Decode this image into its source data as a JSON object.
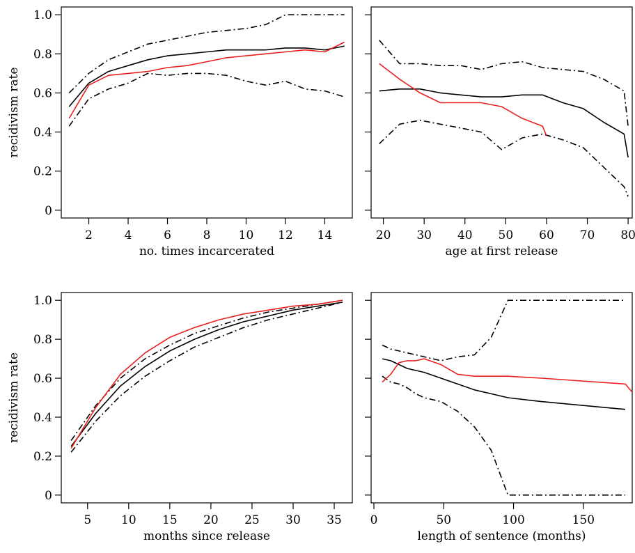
{
  "colors": {
    "black": "#000000",
    "red": "#e8201e"
  },
  "chart_data": [
    {
      "type": "line",
      "xlabel": "no. times incarcerated",
      "ylabel": "recidivism rate",
      "xlim": [
        0.6,
        15.4
      ],
      "ylim": [
        -0.04,
        1.04
      ],
      "xticks": [
        2,
        4,
        6,
        8,
        10,
        12,
        14
      ],
      "yticks": [
        0,
        0.2,
        0.4,
        0.6,
        0.8,
        1.0
      ],
      "xtick_labels": [
        "2",
        "4",
        "6",
        "8",
        "10",
        "12",
        "14"
      ],
      "ytick_labels": [
        "0",
        "0.2",
        "0.4",
        "0.6",
        "0.8",
        "1.0"
      ],
      "show_xtick_labels": true,
      "show_ytick_labels": true,
      "series": [
        {
          "style": "solid",
          "color": "#000000",
          "x": [
            1,
            2,
            3,
            4,
            5,
            6,
            7,
            8,
            9,
            10,
            11,
            12,
            13,
            14,
            15
          ],
          "y": [
            0.53,
            0.65,
            0.71,
            0.74,
            0.77,
            0.79,
            0.8,
            0.81,
            0.82,
            0.82,
            0.82,
            0.83,
            0.83,
            0.82,
            0.84
          ]
        },
        {
          "style": "dashdot",
          "color": "#000000",
          "x": [
            1,
            2,
            3,
            4,
            5,
            6,
            7,
            8,
            9,
            10,
            11,
            12,
            13,
            14,
            15
          ],
          "y": [
            0.6,
            0.7,
            0.77,
            0.81,
            0.85,
            0.87,
            0.89,
            0.91,
            0.92,
            0.93,
            0.95,
            1.0,
            1.0,
            1.0,
            1.0
          ]
        },
        {
          "style": "dashdot",
          "color": "#000000",
          "x": [
            1,
            2,
            3,
            4,
            5,
            6,
            7,
            8,
            9,
            10,
            11,
            12,
            13,
            14,
            15
          ],
          "y": [
            0.43,
            0.57,
            0.62,
            0.65,
            0.7,
            0.69,
            0.7,
            0.7,
            0.69,
            0.66,
            0.64,
            0.66,
            0.62,
            0.61,
            0.58
          ]
        },
        {
          "style": "solid",
          "color": "#e8201e",
          "x": [
            1,
            2,
            3,
            4,
            5,
            6,
            7,
            8,
            9,
            10,
            11,
            12,
            13,
            14,
            15
          ],
          "y": [
            0.47,
            0.64,
            0.69,
            0.7,
            0.71,
            0.73,
            0.74,
            0.76,
            0.78,
            0.79,
            0.8,
            0.81,
            0.82,
            0.81,
            0.86
          ]
        }
      ]
    },
    {
      "type": "line",
      "xlabel": "age at first release",
      "ylabel": "",
      "xlim": [
        17,
        81
      ],
      "ylim": [
        -0.04,
        1.04
      ],
      "xticks": [
        20,
        30,
        40,
        50,
        60,
        70,
        80
      ],
      "yticks": [
        0,
        0.2,
        0.4,
        0.6,
        0.8,
        1.0
      ],
      "xtick_labels": [
        "20",
        "30",
        "40",
        "50",
        "60",
        "70",
        "80"
      ],
      "ytick_labels": [],
      "show_xtick_labels": true,
      "show_ytick_labels": false,
      "series": [
        {
          "style": "solid",
          "color": "#000000",
          "x": [
            19,
            24,
            29,
            34,
            39,
            44,
            49,
            54,
            59,
            64,
            69,
            74,
            79,
            80
          ],
          "y": [
            0.61,
            0.62,
            0.62,
            0.6,
            0.59,
            0.58,
            0.58,
            0.59,
            0.59,
            0.55,
            0.52,
            0.45,
            0.39,
            0.27
          ]
        },
        {
          "style": "dashdot",
          "color": "#000000",
          "x": [
            19,
            24,
            29,
            34,
            39,
            44,
            49,
            54,
            59,
            64,
            69,
            74,
            79,
            80
          ],
          "y": [
            0.87,
            0.75,
            0.75,
            0.74,
            0.74,
            0.72,
            0.75,
            0.76,
            0.73,
            0.72,
            0.71,
            0.67,
            0.61,
            0.43
          ]
        },
        {
          "style": "dashdot",
          "color": "#000000",
          "x": [
            19,
            24,
            29,
            34,
            39,
            44,
            49,
            54,
            59,
            64,
            69,
            74,
            79,
            80
          ],
          "y": [
            0.34,
            0.44,
            0.46,
            0.44,
            0.42,
            0.4,
            0.31,
            0.37,
            0.39,
            0.36,
            0.32,
            0.22,
            0.12,
            0.07
          ]
        },
        {
          "style": "solid",
          "color": "#e8201e",
          "x": [
            19,
            24,
            29,
            34,
            39,
            44,
            49,
            54,
            59,
            60
          ],
          "y": [
            0.75,
            0.67,
            0.6,
            0.55,
            0.55,
            0.55,
            0.53,
            0.47,
            0.43,
            0.38
          ]
        }
      ]
    },
    {
      "type": "line",
      "xlabel": "months since release",
      "ylabel": "recidivism rate",
      "xlim": [
        1.8,
        37.2
      ],
      "ylim": [
        -0.04,
        1.04
      ],
      "xticks": [
        5,
        10,
        15,
        20,
        25,
        30,
        35
      ],
      "yticks": [
        0,
        0.2,
        0.4,
        0.6,
        0.8,
        1.0
      ],
      "xtick_labels": [
        "5",
        "10",
        "15",
        "20",
        "25",
        "30",
        "35"
      ],
      "ytick_labels": [
        "0",
        "0.2",
        "0.4",
        "0.6",
        "0.8",
        "1.0"
      ],
      "show_xtick_labels": true,
      "show_ytick_labels": true,
      "series": [
        {
          "style": "solid",
          "color": "#000000",
          "x": [
            3,
            6,
            9,
            12,
            15,
            18,
            21,
            24,
            27,
            30,
            33,
            36
          ],
          "y": [
            0.25,
            0.42,
            0.56,
            0.66,
            0.74,
            0.8,
            0.85,
            0.89,
            0.92,
            0.95,
            0.97,
            0.99
          ]
        },
        {
          "style": "dashdot",
          "color": "#000000",
          "x": [
            3,
            6,
            9,
            12,
            15,
            18,
            21,
            24,
            27,
            30,
            33,
            36
          ],
          "y": [
            0.28,
            0.46,
            0.6,
            0.7,
            0.77,
            0.83,
            0.87,
            0.91,
            0.94,
            0.96,
            0.98,
            1.0
          ]
        },
        {
          "style": "dashdot",
          "color": "#000000",
          "x": [
            3,
            6,
            9,
            12,
            15,
            18,
            21,
            24,
            27,
            30,
            33,
            36
          ],
          "y": [
            0.22,
            0.38,
            0.51,
            0.61,
            0.69,
            0.76,
            0.81,
            0.86,
            0.9,
            0.93,
            0.96,
            0.99
          ]
        },
        {
          "style": "solid",
          "color": "#e8201e",
          "x": [
            3,
            6,
            9,
            12,
            15,
            18,
            21,
            24,
            27,
            30,
            33,
            36
          ],
          "y": [
            0.24,
            0.45,
            0.62,
            0.73,
            0.81,
            0.86,
            0.9,
            0.93,
            0.95,
            0.97,
            0.98,
            1.0
          ]
        }
      ]
    },
    {
      "type": "line",
      "xlabel": "length of sentence (months)",
      "ylabel": "",
      "xlim": [
        -2,
        185
      ],
      "ylim": [
        -0.04,
        1.04
      ],
      "xticks": [
        0,
        50,
        100,
        150
      ],
      "yticks": [
        0,
        0.2,
        0.4,
        0.6,
        0.8,
        1.0
      ],
      "xtick_labels": [
        "0",
        "50",
        "100",
        "150"
      ],
      "ytick_labels": [],
      "show_xtick_labels": true,
      "show_ytick_labels": false,
      "series": [
        {
          "style": "solid",
          "color": "#000000",
          "x": [
            6,
            12,
            18,
            24,
            30,
            36,
            48,
            60,
            72,
            84,
            96,
            120,
            180
          ],
          "y": [
            0.7,
            0.69,
            0.67,
            0.65,
            0.64,
            0.63,
            0.6,
            0.57,
            0.54,
            0.52,
            0.5,
            0.48,
            0.44
          ]
        },
        {
          "style": "dashdot",
          "color": "#000000",
          "x": [
            6,
            12,
            18,
            24,
            30,
            36,
            48,
            60,
            72,
            84,
            96,
            120,
            180
          ],
          "y": [
            0.77,
            0.75,
            0.74,
            0.73,
            0.72,
            0.71,
            0.69,
            0.71,
            0.72,
            0.81,
            1.0,
            1.0,
            1.0
          ]
        },
        {
          "style": "dashdot",
          "color": "#000000",
          "x": [
            6,
            12,
            18,
            24,
            30,
            36,
            48,
            60,
            72,
            84,
            96,
            120,
            180
          ],
          "y": [
            0.61,
            0.58,
            0.57,
            0.55,
            0.52,
            0.5,
            0.48,
            0.43,
            0.35,
            0.23,
            0.0,
            0.0,
            0.0
          ]
        },
        {
          "style": "solid",
          "color": "#e8201e",
          "x": [
            6,
            12,
            18,
            24,
            30,
            36,
            48,
            60,
            72,
            84,
            96,
            120,
            180,
            186
          ],
          "y": [
            0.58,
            0.62,
            0.68,
            0.69,
            0.69,
            0.7,
            0.67,
            0.62,
            0.61,
            0.61,
            0.61,
            0.6,
            0.57,
            0.52
          ]
        }
      ]
    }
  ]
}
